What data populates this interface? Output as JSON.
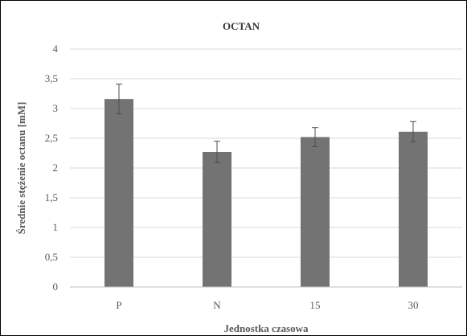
{
  "chart_data": {
    "type": "bar",
    "title": "OCTAN",
    "xlabel": "Jednostka czasowa",
    "ylabel": "Średnie stężenie octanu [mM]",
    "categories": [
      "P",
      "N",
      "15",
      "30"
    ],
    "values": [
      3.16,
      2.27,
      2.52,
      2.61
    ],
    "errors": [
      0.25,
      0.18,
      0.16,
      0.17
    ],
    "ylim": [
      0,
      4
    ],
    "yticks": [
      0,
      0.5,
      1,
      1.5,
      2,
      2.5,
      3,
      3.5,
      4
    ],
    "ytick_labels": [
      "0",
      "0,5",
      "1",
      "1,5",
      "2",
      "2,5",
      "3",
      "3,5",
      "4"
    ],
    "grid": true,
    "legend": "none",
    "colors": {
      "bar": "#737373",
      "error_bar": "#4d4d4d",
      "grid": "#d9d9d9",
      "axis": "#bfbfbf",
      "frame": "#000000",
      "text": "#595959",
      "title": "#333333"
    }
  }
}
